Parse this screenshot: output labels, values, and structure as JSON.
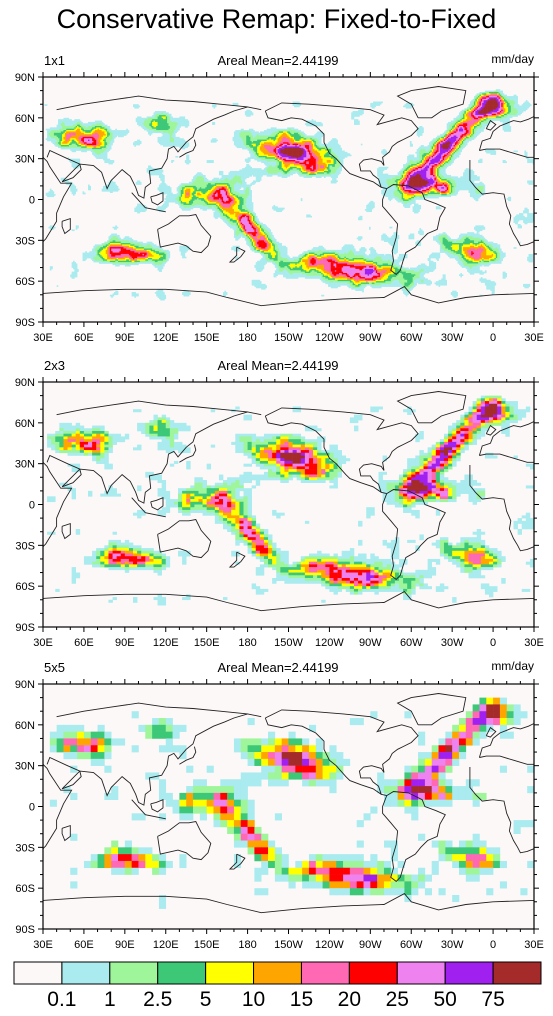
{
  "title": "Conservative Remap: Fixed-to-Fixed",
  "colors": {
    "ocean_bg": "#fdf8f8",
    "coast": "#222222"
  },
  "chart_data": [
    {
      "type": "heatmap",
      "label_left": "1x1",
      "label_center": "Areal Mean=2.44199",
      "label_right": "mm/day",
      "resolution_deg": [
        1,
        1
      ],
      "x_ticks": [
        "30E",
        "60E",
        "90E",
        "120E",
        "150E",
        "180",
        "150W",
        "120W",
        "90W",
        "60W",
        "30W",
        "0",
        "30E"
      ],
      "y_ticks": [
        "90N",
        "60N",
        "30N",
        "0",
        "30S",
        "60S",
        "90S"
      ],
      "xlim": [
        30,
        390
      ],
      "ylim": [
        -90,
        90
      ]
    },
    {
      "type": "heatmap",
      "label_left": "2x3",
      "label_center": "Areal Mean=2.44199",
      "label_right": "",
      "resolution_deg": [
        2,
        3
      ],
      "x_ticks": [
        "30E",
        "60E",
        "90E",
        "120E",
        "150E",
        "180",
        "150W",
        "120W",
        "90W",
        "60W",
        "30W",
        "0",
        "30E"
      ],
      "y_ticks": [
        "90N",
        "60N",
        "30N",
        "0",
        "30S",
        "60S",
        "90S"
      ],
      "xlim": [
        30,
        390
      ],
      "ylim": [
        -90,
        90
      ]
    },
    {
      "type": "heatmap",
      "label_left": "5x5",
      "label_center": "Areal Mean=2.44199",
      "label_right": "mm/day",
      "resolution_deg": [
        5,
        5
      ],
      "x_ticks": [
        "30E",
        "60E",
        "90E",
        "120E",
        "150E",
        "180",
        "150W",
        "120W",
        "90W",
        "60W",
        "30W",
        "0",
        "30E"
      ],
      "y_ticks": [
        "90N",
        "60N",
        "30N",
        "0",
        "30S",
        "60S",
        "90S"
      ],
      "xlim": [
        30,
        390
      ],
      "ylim": [
        -90,
        90
      ]
    }
  ],
  "colorbar": {
    "colors": [
      "#fdf8f8",
      "#a9ebee",
      "#9ef59a",
      "#3dc878",
      "#ffff00",
      "#ffa500",
      "#ff69b4",
      "#ff0000",
      "#ee82ee",
      "#a020f0",
      "#a52a2a"
    ],
    "labels": [
      "0.1",
      "1",
      "2.5",
      "5",
      "10",
      "15",
      "20",
      "25",
      "50",
      "75"
    ]
  }
}
